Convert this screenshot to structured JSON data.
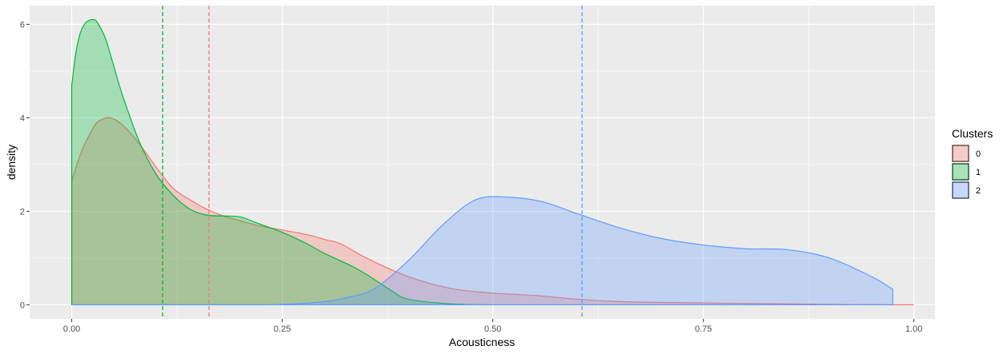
{
  "chart_data": {
    "type": "area",
    "title": "",
    "xlabel": "Acousticness",
    "ylabel": "density",
    "xlim": [
      -0.05,
      1.025
    ],
    "ylim": [
      -0.3,
      6.4
    ],
    "grid": true,
    "legend_position": "right",
    "x_ticks": [
      0,
      0.25,
      0.5,
      0.75,
      1.0
    ],
    "x_tick_labels": [
      "0.00",
      "0.25",
      "0.50",
      "0.75",
      "1.00"
    ],
    "y_ticks": [
      0,
      2,
      4,
      6
    ],
    "y_tick_labels": [
      "0",
      "2",
      "4",
      "6"
    ],
    "legend": {
      "title": "Clusters",
      "entries": [
        "0",
        "1",
        "2"
      ]
    },
    "series": [
      {
        "name": "0",
        "color": "#F8766D",
        "mean_line": 0.163,
        "x": [
          0,
          0.01,
          0.02,
          0.03,
          0.045,
          0.06,
          0.08,
          0.1,
          0.12,
          0.14,
          0.16,
          0.18,
          0.2,
          0.22,
          0.25,
          0.28,
          0.3,
          0.32,
          0.35,
          0.4,
          0.45,
          0.5,
          0.55,
          0.6,
          0.65,
          0.7,
          0.8,
          0.9,
          1.0
        ],
        "y": [
          2.65,
          3.2,
          3.6,
          3.9,
          4.0,
          3.85,
          3.45,
          2.95,
          2.5,
          2.25,
          2.05,
          1.9,
          1.8,
          1.7,
          1.6,
          1.5,
          1.4,
          1.3,
          1.0,
          0.6,
          0.35,
          0.25,
          0.2,
          0.12,
          0.07,
          0.05,
          0.03,
          0.01,
          0
        ]
      },
      {
        "name": "1",
        "color": "#00BA38",
        "mean_line": 0.108,
        "x": [
          0,
          0.005,
          0.01,
          0.015,
          0.02,
          0.025,
          0.03,
          0.04,
          0.05,
          0.06,
          0.08,
          0.1,
          0.12,
          0.14,
          0.16,
          0.18,
          0.2,
          0.22,
          0.25,
          0.28,
          0.3,
          0.33,
          0.35,
          0.38,
          0.4,
          0.45,
          0.5
        ],
        "y": [
          4.7,
          5.4,
          5.8,
          6.0,
          6.08,
          6.1,
          6.05,
          5.7,
          5.1,
          4.5,
          3.5,
          2.8,
          2.35,
          2.05,
          1.92,
          1.9,
          1.88,
          1.75,
          1.55,
          1.3,
          1.1,
          0.85,
          0.65,
          0.3,
          0.12,
          0.02,
          0
        ]
      },
      {
        "name": "2",
        "color": "#619CFF",
        "mean_line": 0.606,
        "x": [
          0,
          0.2,
          0.25,
          0.3,
          0.33,
          0.36,
          0.4,
          0.44,
          0.48,
          0.52,
          0.56,
          0.6,
          0.65,
          0.7,
          0.75,
          0.8,
          0.85,
          0.9,
          0.95,
          0.975
        ],
        "y": [
          0,
          0,
          0.01,
          0.07,
          0.17,
          0.35,
          0.95,
          1.7,
          2.25,
          2.3,
          2.2,
          1.95,
          1.65,
          1.42,
          1.28,
          1.2,
          1.18,
          1.0,
          0.6,
          0.33
        ]
      }
    ]
  }
}
